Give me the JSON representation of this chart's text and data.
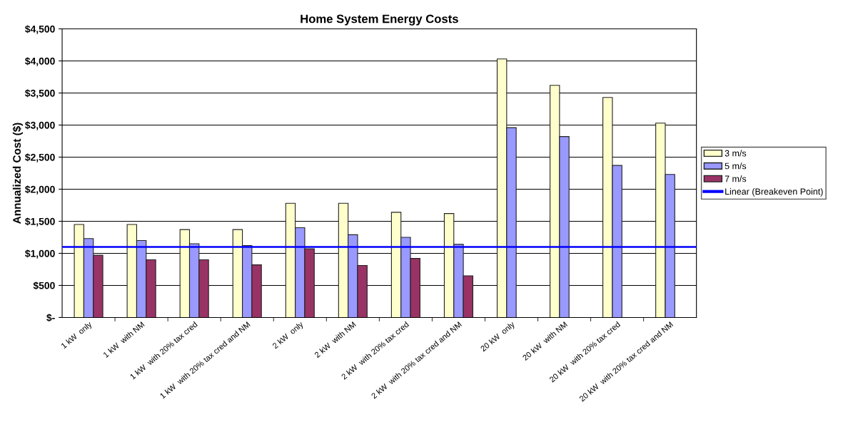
{
  "chart_data": {
    "type": "bar",
    "title": "Home System Energy Costs",
    "ylabel": "Annualized Cost ($)",
    "categories": [
      "1 kW  only",
      "1 kW  with NM",
      "1 kW  with 20% tax cred",
      "1 kW  with 20% tax cred and NM",
      "2 kW  only",
      "2 kW  with NM",
      "2 kW  with 20% tax cred",
      "2 kW  with 20% tax cred and NM",
      "20 kW  only",
      "20 kW  with NM",
      "20 kW  with 20% tax cred",
      "20 kW  with 20% tax cred and NM"
    ],
    "series": [
      {
        "name": "3 m/s",
        "color": "#ffffcc",
        "values": [
          1450,
          1450,
          1370,
          1370,
          1780,
          1780,
          1640,
          1620,
          4030,
          3620,
          3430,
          3030
        ]
      },
      {
        "name": "5 m/s",
        "color": "#9999ff",
        "values": [
          1230,
          1200,
          1150,
          1120,
          1400,
          1290,
          1250,
          1140,
          2960,
          2820,
          2370,
          2230
        ]
      },
      {
        "name": "7 m/s",
        "color": "#993366",
        "values": [
          970,
          900,
          900,
          820,
          1070,
          810,
          920,
          650,
          null,
          null,
          null,
          null
        ]
      }
    ],
    "ref_lines": [
      {
        "axis": "y",
        "value": 1100,
        "label": "Linear (Breakeven Point)",
        "color": "#0000ff"
      }
    ],
    "ylim": [
      0,
      4500
    ],
    "yticks": [
      {
        "value": 0,
        "label": "$-"
      },
      {
        "value": 500,
        "label": "$500"
      },
      {
        "value": 1000,
        "label": "$1,000"
      },
      {
        "value": 1500,
        "label": "$1,500"
      },
      {
        "value": 2000,
        "label": "$2,000"
      },
      {
        "value": 2500,
        "label": "$2,500"
      },
      {
        "value": 3000,
        "label": "$3,000"
      },
      {
        "value": 3500,
        "label": "$3,500"
      },
      {
        "value": 4000,
        "label": "$4,000"
      },
      {
        "value": 4500,
        "label": "$4,500"
      }
    ],
    "grid": "y",
    "legend": "right"
  }
}
